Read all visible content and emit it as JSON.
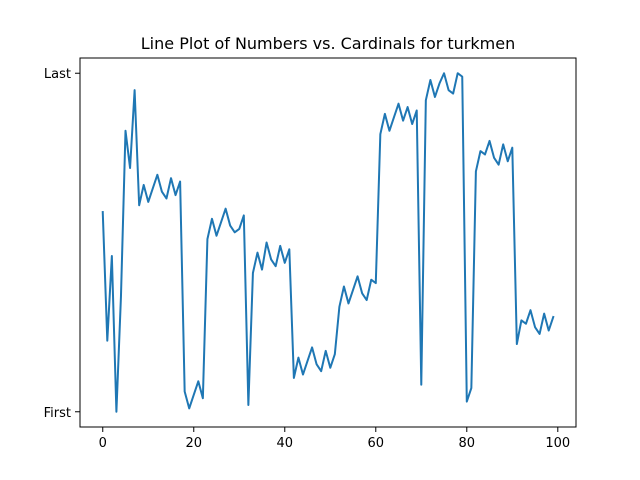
{
  "chart_data": {
    "type": "line",
    "title": "Line Plot of Numbers vs. Cardinals for turkmen",
    "xlabel": "",
    "ylabel": "",
    "xlim": [
      -5,
      104
    ],
    "ylim": [
      -0.045,
      1.045
    ],
    "xticks": [
      0,
      20,
      40,
      60,
      80,
      100
    ],
    "yticks": [
      {
        "value": 0,
        "label": "First"
      },
      {
        "value": 1,
        "label": "Last"
      }
    ],
    "grid": false,
    "series": [
      {
        "color": "#1f77b4",
        "x": [
          0,
          1,
          2,
          3,
          4,
          5,
          6,
          7,
          8,
          9,
          10,
          11,
          12,
          13,
          14,
          15,
          16,
          17,
          18,
          19,
          20,
          21,
          22,
          23,
          24,
          25,
          26,
          27,
          28,
          29,
          30,
          31,
          32,
          33,
          34,
          35,
          36,
          37,
          38,
          39,
          40,
          41,
          42,
          43,
          44,
          45,
          46,
          47,
          48,
          49,
          50,
          51,
          52,
          53,
          54,
          55,
          56,
          57,
          58,
          59,
          60,
          61,
          62,
          63,
          64,
          65,
          66,
          67,
          68,
          69,
          70,
          71,
          72,
          73,
          74,
          75,
          76,
          77,
          78,
          79,
          80,
          81,
          82,
          83,
          84,
          85,
          86,
          87,
          88,
          89,
          90,
          91,
          92,
          93,
          94,
          95,
          96,
          97,
          98,
          99
        ],
        "y": [
          0.59,
          0.21,
          0.46,
          0.0,
          0.34,
          0.83,
          0.72,
          0.95,
          0.61,
          0.67,
          0.62,
          0.66,
          0.7,
          0.65,
          0.63,
          0.69,
          0.64,
          0.68,
          0.06,
          0.01,
          0.05,
          0.09,
          0.04,
          0.51,
          0.57,
          0.52,
          0.56,
          0.6,
          0.55,
          0.53,
          0.54,
          0.58,
          0.02,
          0.41,
          0.47,
          0.42,
          0.5,
          0.45,
          0.43,
          0.49,
          0.44,
          0.48,
          0.1,
          0.16,
          0.11,
          0.15,
          0.19,
          0.14,
          0.12,
          0.18,
          0.13,
          0.17,
          0.31,
          0.37,
          0.32,
          0.36,
          0.4,
          0.35,
          0.33,
          0.39,
          0.38,
          0.82,
          0.88,
          0.83,
          0.87,
          0.91,
          0.86,
          0.9,
          0.85,
          0.89,
          0.08,
          0.92,
          0.98,
          0.93,
          0.97,
          1.0,
          0.95,
          0.94,
          1.0,
          0.99,
          0.03,
          0.07,
          0.71,
          0.77,
          0.76,
          0.8,
          0.75,
          0.73,
          0.79,
          0.74,
          0.78,
          0.2,
          0.27,
          0.26,
          0.3,
          0.25,
          0.23,
          0.29,
          0.24,
          0.28
        ]
      }
    ]
  }
}
